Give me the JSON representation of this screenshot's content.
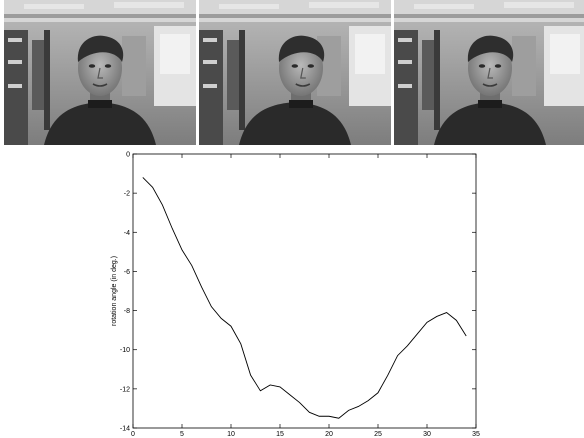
{
  "frames": [
    {
      "name": "frame-1",
      "head_turn": 0
    },
    {
      "name": "frame-2",
      "head_turn": 1
    },
    {
      "name": "frame-3",
      "head_turn": 0
    }
  ],
  "colors": {
    "line": "#000000",
    "frame_dark": "#2a2a2a",
    "frame_mid": "#8a8a8a",
    "frame_light": "#e6e6e6"
  },
  "chart_data": {
    "type": "line",
    "title": "",
    "xlabel": "",
    "ylabel": "rotation angle (in deg.)",
    "xlim": [
      0,
      35
    ],
    "ylim": [
      -14,
      0
    ],
    "xticks": [
      0,
      5,
      10,
      15,
      20,
      25,
      30,
      35
    ],
    "yticks": [
      0,
      -2,
      -4,
      -6,
      -8,
      -10,
      -12,
      -14
    ],
    "xtick_labels": [
      "0",
      "5",
      "10",
      "15",
      "20",
      "25",
      "30",
      "35"
    ],
    "ytick_labels": [
      "0",
      "-2",
      "-4",
      "-6",
      "-8",
      "-10",
      "-12",
      "-14"
    ],
    "grid": false,
    "series": [
      {
        "x": [
          1,
          2,
          3,
          4,
          5,
          6,
          7,
          8,
          9,
          10,
          11,
          12,
          13,
          14,
          15,
          16,
          17,
          18,
          19,
          20,
          21,
          22,
          23,
          24,
          25,
          26,
          27,
          28,
          29,
          30,
          31,
          32,
          33,
          34
        ],
        "y": [
          -1.2,
          -1.7,
          -2.6,
          -3.8,
          -4.9,
          -5.7,
          -6.8,
          -7.8,
          -8.4,
          -8.8,
          -9.7,
          -11.3,
          -12.1,
          -11.8,
          -11.9,
          -12.3,
          -12.7,
          -13.2,
          -13.4,
          -13.4,
          -13.5,
          -13.1,
          -12.9,
          -12.6,
          -12.2,
          -11.3,
          -10.3,
          -9.8,
          -9.2,
          -8.6,
          -8.3,
          -8.1,
          -8.5,
          -9.3
        ]
      }
    ]
  }
}
